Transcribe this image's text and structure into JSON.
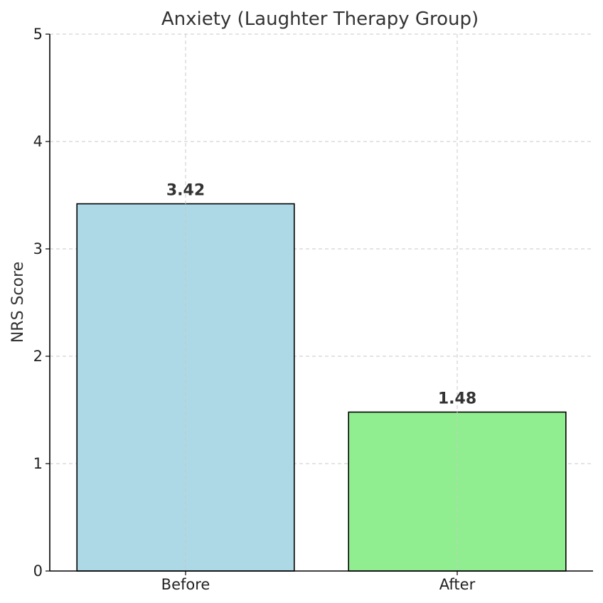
{
  "chart_data": {
    "type": "bar",
    "title": "Anxiety (Laughter Therapy Group)",
    "xlabel": "",
    "ylabel": "NRS Score",
    "categories": [
      "Before",
      "After"
    ],
    "values": [
      3.42,
      1.48
    ],
    "value_labels": [
      "3.42",
      "1.48"
    ],
    "colors": [
      "#add8e6",
      "#90ee90"
    ],
    "ylim": [
      0,
      5
    ],
    "yticks": [
      0,
      1,
      2,
      3,
      4,
      5
    ],
    "grid": true
  }
}
